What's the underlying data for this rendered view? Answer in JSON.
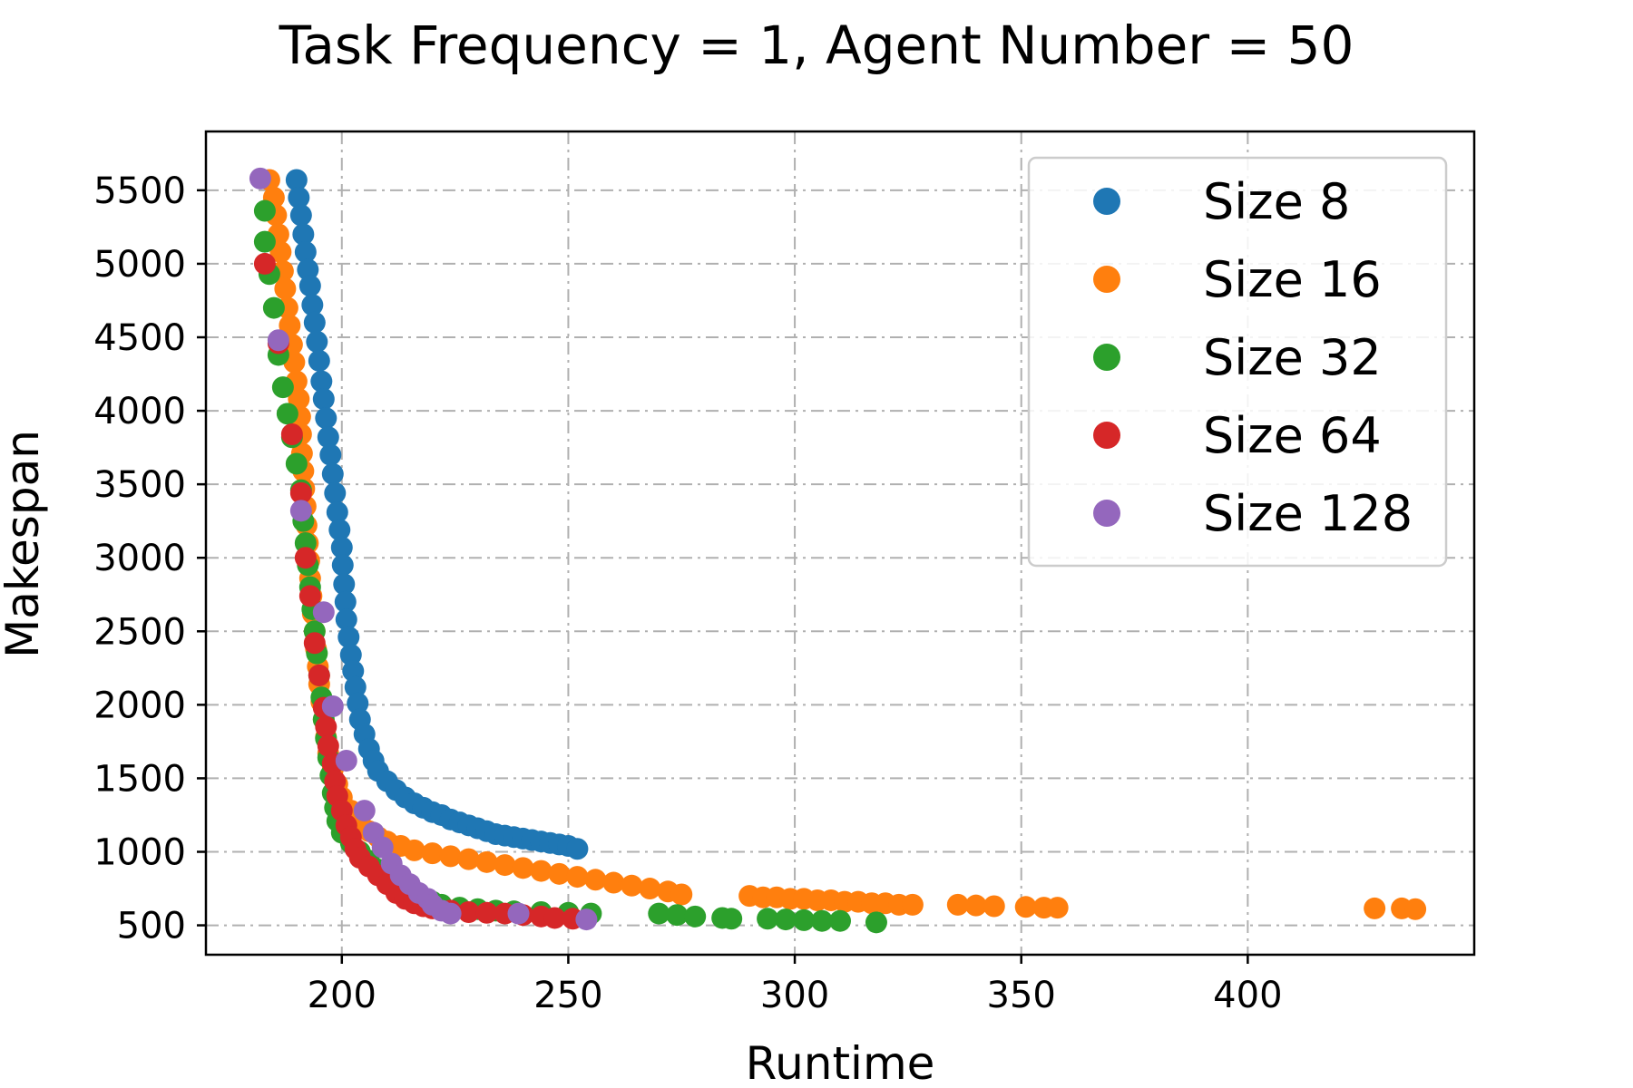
{
  "chart_data": {
    "type": "scatter",
    "title": "Task Frequency = 1, Agent Number = 50",
    "xlabel": "Runtime",
    "ylabel": "Makespan",
    "xlim": [
      170,
      450
    ],
    "ylim": [
      300,
      5900
    ],
    "xticks": [
      200,
      250,
      300,
      350,
      400
    ],
    "yticks": [
      500,
      1000,
      1500,
      2000,
      2500,
      3000,
      3500,
      4000,
      4500,
      5000,
      5500
    ],
    "grid": true,
    "legend_position": "top-right",
    "series": [
      {
        "name": "Size 8",
        "color": "#1f77b4",
        "points": [
          [
            190,
            5570
          ],
          [
            190.5,
            5450
          ],
          [
            191,
            5330
          ],
          [
            191.5,
            5200
          ],
          [
            192,
            5080
          ],
          [
            192.5,
            4960
          ],
          [
            193,
            4850
          ],
          [
            193.5,
            4720
          ],
          [
            194,
            4600
          ],
          [
            194.5,
            4470
          ],
          [
            195,
            4340
          ],
          [
            195.5,
            4200
          ],
          [
            196,
            4080
          ],
          [
            196.5,
            3950
          ],
          [
            197,
            3820
          ],
          [
            197.5,
            3700
          ],
          [
            198,
            3570
          ],
          [
            198.5,
            3440
          ],
          [
            199,
            3310
          ],
          [
            199.5,
            3190
          ],
          [
            200,
            3070
          ],
          [
            200.2,
            2950
          ],
          [
            200.5,
            2820
          ],
          [
            200.8,
            2700
          ],
          [
            201,
            2580
          ],
          [
            201.5,
            2460
          ],
          [
            202,
            2340
          ],
          [
            202.5,
            2230
          ],
          [
            203,
            2120
          ],
          [
            203.5,
            2010
          ],
          [
            204,
            1900
          ],
          [
            205,
            1800
          ],
          [
            206,
            1700
          ],
          [
            207,
            1620
          ],
          [
            208,
            1550
          ],
          [
            210,
            1480
          ],
          [
            212,
            1420
          ],
          [
            214,
            1370
          ],
          [
            216,
            1330
          ],
          [
            218,
            1300
          ],
          [
            220,
            1270
          ],
          [
            222,
            1250
          ],
          [
            224,
            1220
          ],
          [
            226,
            1200
          ],
          [
            228,
            1180
          ],
          [
            230,
            1160
          ],
          [
            232,
            1140
          ],
          [
            234,
            1120
          ],
          [
            236,
            1110
          ],
          [
            238,
            1100
          ],
          [
            240,
            1090
          ],
          [
            242,
            1080
          ],
          [
            244,
            1070
          ],
          [
            246,
            1060
          ],
          [
            248,
            1050
          ],
          [
            250,
            1040
          ],
          [
            252,
            1020
          ]
        ]
      },
      {
        "name": "Size 16",
        "color": "#ff7f0e",
        "points": [
          [
            184,
            5570
          ],
          [
            185,
            5450
          ],
          [
            185.5,
            5330
          ],
          [
            186,
            5200
          ],
          [
            186.5,
            5080
          ],
          [
            187,
            4950
          ],
          [
            187.5,
            4830
          ],
          [
            188,
            4700
          ],
          [
            188.5,
            4580
          ],
          [
            189,
            4450
          ],
          [
            189.5,
            4330
          ],
          [
            190,
            4200
          ],
          [
            190.5,
            4080
          ],
          [
            190.8,
            3960
          ],
          [
            191,
            3840
          ],
          [
            191.2,
            3710
          ],
          [
            191.5,
            3590
          ],
          [
            191.7,
            3470
          ],
          [
            192,
            3350
          ],
          [
            192.2,
            3220
          ],
          [
            192.5,
            3100
          ],
          [
            192.8,
            2980
          ],
          [
            193,
            2860
          ],
          [
            193.3,
            2740
          ],
          [
            193.6,
            2620
          ],
          [
            194,
            2500
          ],
          [
            194.3,
            2380
          ],
          [
            194.7,
            2260
          ],
          [
            195,
            2140
          ],
          [
            195.5,
            2020
          ],
          [
            196,
            1900
          ],
          [
            196.5,
            1780
          ],
          [
            197,
            1670
          ],
          [
            198,
            1560
          ],
          [
            199,
            1460
          ],
          [
            200,
            1370
          ],
          [
            202,
            1280
          ],
          [
            204,
            1200
          ],
          [
            206,
            1140
          ],
          [
            208,
            1100
          ],
          [
            210,
            1070
          ],
          [
            213,
            1040
          ],
          [
            216,
            1010
          ],
          [
            220,
            990
          ],
          [
            224,
            970
          ],
          [
            228,
            950
          ],
          [
            232,
            930
          ],
          [
            236,
            910
          ],
          [
            240,
            890
          ],
          [
            244,
            870
          ],
          [
            248,
            850
          ],
          [
            252,
            830
          ],
          [
            256,
            810
          ],
          [
            260,
            790
          ],
          [
            264,
            770
          ],
          [
            268,
            750
          ],
          [
            272,
            730
          ],
          [
            275,
            710
          ],
          [
            290,
            700
          ],
          [
            293,
            690
          ],
          [
            296,
            690
          ],
          [
            299,
            680
          ],
          [
            302,
            680
          ],
          [
            305,
            670
          ],
          [
            308,
            670
          ],
          [
            311,
            660
          ],
          [
            314,
            660
          ],
          [
            317,
            650
          ],
          [
            320,
            650
          ],
          [
            323,
            640
          ],
          [
            326,
            640
          ],
          [
            336,
            640
          ],
          [
            340,
            635
          ],
          [
            344,
            630
          ],
          [
            351,
            625
          ],
          [
            355,
            620
          ],
          [
            358,
            620
          ],
          [
            428,
            615
          ],
          [
            434,
            615
          ],
          [
            437,
            610
          ]
        ]
      },
      {
        "name": "Size 32",
        "color": "#2ca02c",
        "points": [
          [
            183,
            5360
          ],
          [
            183,
            5150
          ],
          [
            184,
            4930
          ],
          [
            185,
            4700
          ],
          [
            186,
            4380
          ],
          [
            187,
            4160
          ],
          [
            188,
            3980
          ],
          [
            189,
            3820
          ],
          [
            190,
            3640
          ],
          [
            191,
            3460
          ],
          [
            191.5,
            3250
          ],
          [
            192,
            3100
          ],
          [
            192.5,
            2950
          ],
          [
            193,
            2800
          ],
          [
            193.5,
            2650
          ],
          [
            194,
            2500
          ],
          [
            194.5,
            2350
          ],
          [
            195,
            2200
          ],
          [
            195.5,
            2050
          ],
          [
            196,
            1900
          ],
          [
            196.5,
            1770
          ],
          [
            197,
            1640
          ],
          [
            197.5,
            1520
          ],
          [
            198,
            1400
          ],
          [
            198.5,
            1300
          ],
          [
            199,
            1210
          ],
          [
            200,
            1130
          ],
          [
            202,
            1060
          ],
          [
            204,
            1000
          ],
          [
            206,
            940
          ],
          [
            208,
            880
          ],
          [
            210,
            830
          ],
          [
            212,
            780
          ],
          [
            214,
            740
          ],
          [
            216,
            710
          ],
          [
            218,
            680
          ],
          [
            220,
            660
          ],
          [
            222,
            640
          ],
          [
            226,
            620
          ],
          [
            230,
            610
          ],
          [
            234,
            600
          ],
          [
            238,
            595
          ],
          [
            244,
            590
          ],
          [
            250,
            585
          ],
          [
            255,
            580
          ],
          [
            270,
            580
          ],
          [
            274,
            570
          ],
          [
            278,
            560
          ],
          [
            284,
            550
          ],
          [
            286,
            545
          ],
          [
            294,
            545
          ],
          [
            298,
            540
          ],
          [
            302,
            535
          ],
          [
            306,
            530
          ],
          [
            310,
            530
          ],
          [
            318,
            520
          ]
        ]
      },
      {
        "name": "Size 64",
        "color": "#d62728",
        "points": [
          [
            183,
            5000
          ],
          [
            186,
            4460
          ],
          [
            189,
            3840
          ],
          [
            191,
            3440
          ],
          [
            192,
            3000
          ],
          [
            193,
            2740
          ],
          [
            194,
            2420
          ],
          [
            195,
            2200
          ],
          [
            196,
            1980
          ],
          [
            196.5,
            1850
          ],
          [
            197,
            1720
          ],
          [
            198,
            1600
          ],
          [
            198.5,
            1480
          ],
          [
            199,
            1380
          ],
          [
            200,
            1280
          ],
          [
            201,
            1180
          ],
          [
            202,
            1100
          ],
          [
            203,
            1020
          ],
          [
            204,
            960
          ],
          [
            206,
            900
          ],
          [
            208,
            840
          ],
          [
            210,
            780
          ],
          [
            212,
            720
          ],
          [
            214,
            680
          ],
          [
            216,
            650
          ],
          [
            218,
            630
          ],
          [
            220,
            615
          ],
          [
            224,
            600
          ],
          [
            228,
            590
          ],
          [
            232,
            585
          ],
          [
            236,
            580
          ],
          [
            240,
            570
          ],
          [
            244,
            560
          ],
          [
            247,
            550
          ],
          [
            251,
            545
          ]
        ]
      },
      {
        "name": "Size 128",
        "color": "#9467bd",
        "points": [
          [
            182,
            5580
          ],
          [
            186,
            4480
          ],
          [
            191,
            3320
          ],
          [
            196,
            2630
          ],
          [
            198,
            1990
          ],
          [
            201,
            1620
          ],
          [
            205,
            1280
          ],
          [
            207,
            1130
          ],
          [
            209,
            1030
          ],
          [
            211,
            920
          ],
          [
            213,
            840
          ],
          [
            215,
            780
          ],
          [
            217,
            720
          ],
          [
            219,
            680
          ],
          [
            220,
            640
          ],
          [
            222,
            600
          ],
          [
            224,
            580
          ],
          [
            239,
            580
          ],
          [
            254,
            540
          ]
        ]
      }
    ]
  }
}
